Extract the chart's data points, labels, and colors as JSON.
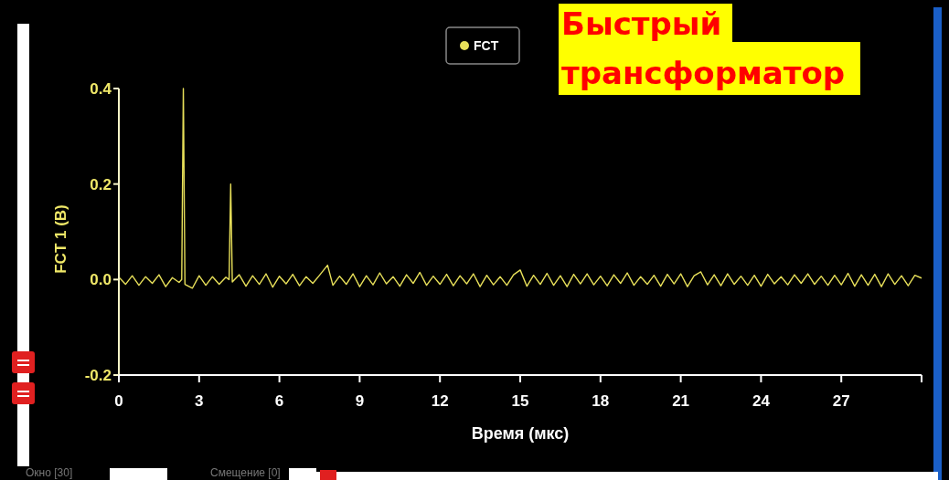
{
  "chart_data": {
    "type": "line",
    "title": "Быстрый трансформатор",
    "xlabel": "Время (мкс)",
    "ylabel": "FCT 1 (В)",
    "annotations": [
      "Окно [30]",
      "Смещение [0]"
    ],
    "xlim": [
      0,
      30
    ],
    "xticks": [
      0,
      3,
      6,
      9,
      12,
      15,
      18,
      21,
      24,
      27,
      {
        "value": 30,
        "label": null
      }
    ],
    "ylim": [
      -0.2,
      0.4
    ],
    "yticks": [
      {
        "value": -0.2,
        "label": "-0.2"
      },
      {
        "value": 0,
        "label": "0.0"
      },
      {
        "value": 0.2,
        "label": "0.2"
      },
      {
        "value": 0.4,
        "label": "0.4"
      }
    ],
    "grid": false,
    "legend": "top",
    "marker": "none",
    "line_style": "solid",
    "series": [
      {
        "name": "FCT",
        "color": "#e8e05a",
        "x": [
          0,
          0.25,
          0.5,
          0.75,
          1.0,
          1.25,
          1.5,
          1.75,
          2.0,
          2.25,
          2.35,
          2.41,
          2.47,
          2.75,
          3.0,
          3.25,
          3.5,
          3.75,
          4.0,
          4.12,
          4.18,
          4.24,
          4.5,
          4.75,
          5.0,
          5.25,
          5.5,
          5.75,
          6.0,
          6.25,
          6.5,
          6.75,
          7.0,
          7.25,
          7.5,
          7.8,
          8.0,
          8.25,
          8.5,
          8.75,
          9.0,
          9.25,
          9.5,
          9.75,
          10.0,
          10.25,
          10.5,
          10.75,
          11.0,
          11.25,
          11.5,
          11.75,
          12.0,
          12.25,
          12.5,
          12.75,
          13.0,
          13.25,
          13.5,
          13.75,
          14.0,
          14.25,
          14.5,
          14.75,
          15.0,
          15.25,
          15.5,
          15.75,
          16.0,
          16.25,
          16.5,
          16.75,
          17.0,
          17.25,
          17.5,
          17.75,
          18.0,
          18.25,
          18.5,
          18.75,
          19.0,
          19.25,
          19.5,
          19.75,
          20.0,
          20.25,
          20.5,
          20.75,
          21.0,
          21.25,
          21.5,
          21.75,
          22.0,
          22.25,
          22.5,
          22.75,
          23.0,
          23.25,
          23.5,
          23.75,
          24.0,
          24.25,
          24.5,
          24.75,
          25.0,
          25.25,
          25.5,
          25.75,
          26.0,
          26.25,
          26.5,
          26.75,
          27.0,
          27.25,
          27.5,
          27.75,
          28.0,
          28.25,
          28.5,
          28.75,
          29.0,
          29.25,
          29.5,
          29.75,
          30.0
        ],
        "values": [
          0.005,
          -0.01,
          0.008,
          -0.012,
          0.006,
          -0.008,
          0.01,
          -0.015,
          0.004,
          -0.006,
          0.0,
          0.4,
          -0.01,
          -0.018,
          0.008,
          -0.012,
          0.006,
          -0.01,
          0.005,
          0.0,
          0.2,
          -0.005,
          0.01,
          -0.014,
          0.008,
          -0.01,
          0.012,
          -0.016,
          0.007,
          -0.009,
          0.011,
          -0.013,
          0.006,
          -0.008,
          0.009,
          0.03,
          -0.012,
          0.007,
          -0.01,
          0.012,
          -0.015,
          0.008,
          -0.011,
          0.014,
          -0.009,
          0.006,
          -0.014,
          0.01,
          -0.008,
          0.015,
          -0.012,
          0.007,
          -0.01,
          0.011,
          -0.013,
          0.008,
          -0.009,
          0.012,
          -0.015,
          0.009,
          -0.011,
          0.006,
          -0.012,
          0.01,
          0.02,
          -0.014,
          0.009,
          -0.01,
          0.013,
          -0.012,
          0.008,
          -0.015,
          0.011,
          -0.009,
          0.012,
          -0.011,
          0.007,
          -0.013,
          0.01,
          -0.008,
          0.014,
          -0.012,
          0.006,
          -0.01,
          0.009,
          -0.014,
          0.011,
          -0.009,
          0.012,
          -0.015,
          0.008,
          0.016,
          -0.011,
          0.01,
          -0.013,
          0.012,
          -0.01,
          0.007,
          -0.012,
          0.009,
          -0.014,
          0.011,
          -0.009,
          0.006,
          -0.011,
          0.01,
          -0.008,
          0.012,
          -0.01,
          0.007,
          -0.012,
          0.009,
          -0.011,
          0.013,
          -0.014,
          0.01,
          -0.012,
          0.011,
          -0.015,
          0.012,
          -0.01,
          0.008,
          -0.013,
          0.009,
          0.003
        ]
      }
    ]
  }
}
